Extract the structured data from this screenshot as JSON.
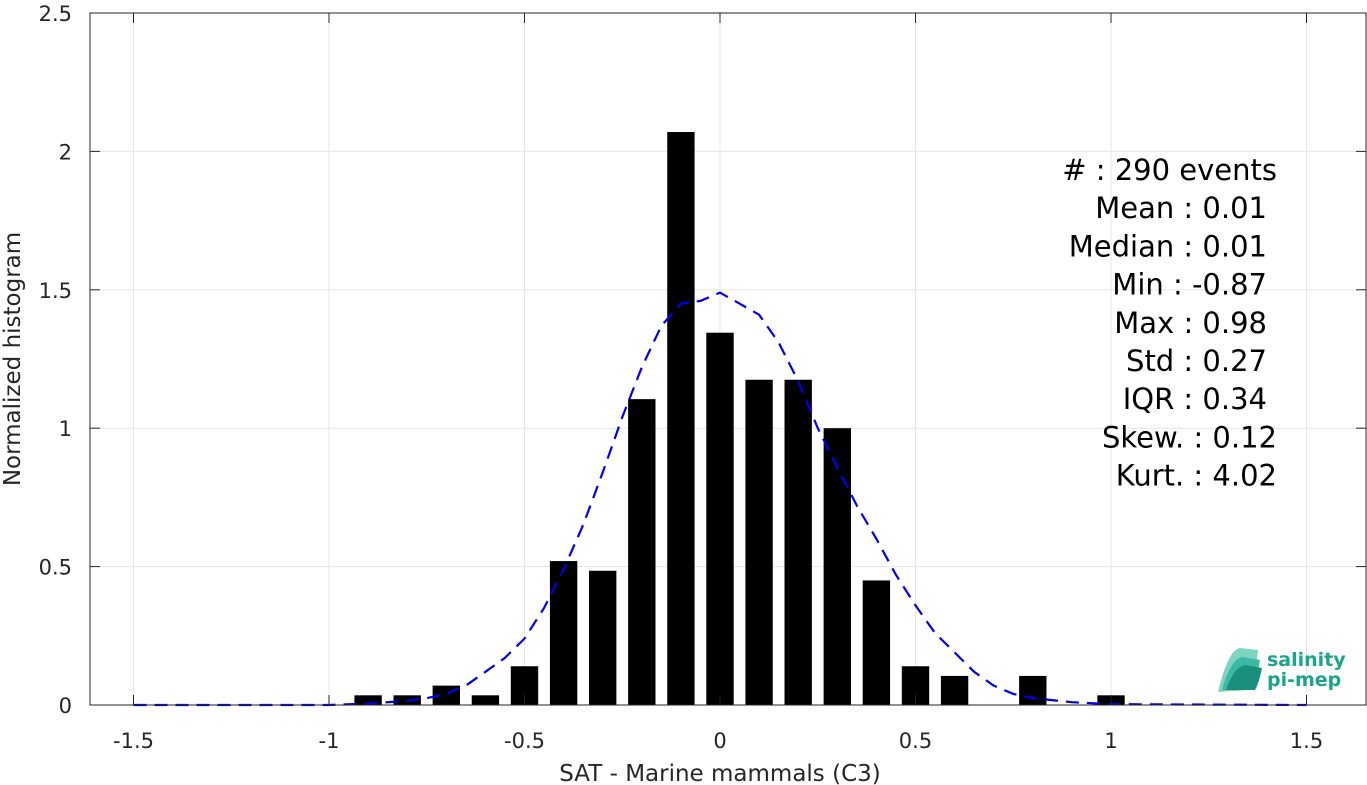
{
  "chart_data": {
    "type": "bar",
    "xlabel": "SAT - Marine mammals (C3)",
    "ylabel": "Normalized histogram",
    "xlim": [
      -1.5,
      1.5
    ],
    "ylim": [
      0,
      2.5
    ],
    "xticks": [
      "-1.5",
      "-1",
      "-0.5",
      "0",
      "0.5",
      "1",
      "1.5"
    ],
    "yticks": [
      "0",
      "0.5",
      "1",
      "1.5",
      "2",
      "2.5"
    ],
    "grid": true,
    "bar_color": "#000000",
    "bar_width": 0.07,
    "bars": {
      "x": [
        -0.9,
        -0.8,
        -0.7,
        -0.6,
        -0.5,
        -0.4,
        -0.3,
        -0.2,
        -0.1,
        0.0,
        0.1,
        0.2,
        0.3,
        0.4,
        0.5,
        0.6,
        0.8,
        1.0
      ],
      "values": [
        0.035,
        0.035,
        0.07,
        0.035,
        0.14,
        0.52,
        0.485,
        1.105,
        2.07,
        1.345,
        1.175,
        1.175,
        1.0,
        0.45,
        0.14,
        0.105,
        0.105,
        0.035
      ]
    },
    "fit_curve": {
      "style": "dashed",
      "color": "#0000ee",
      "x": [
        -1.5,
        -1.0,
        -0.9,
        -0.8,
        -0.75,
        -0.7,
        -0.65,
        -0.6,
        -0.55,
        -0.5,
        -0.45,
        -0.4,
        -0.35,
        -0.3,
        -0.25,
        -0.2,
        -0.15,
        -0.1,
        -0.05,
        0.0,
        0.05,
        0.1,
        0.15,
        0.2,
        0.25,
        0.3,
        0.35,
        0.4,
        0.45,
        0.5,
        0.55,
        0.6,
        0.65,
        0.7,
        0.75,
        0.8,
        0.9,
        1.0,
        1.5
      ],
      "y": [
        0.0,
        0.0,
        0.005,
        0.015,
        0.025,
        0.04,
        0.07,
        0.12,
        0.17,
        0.24,
        0.35,
        0.49,
        0.65,
        0.84,
        1.04,
        1.22,
        1.37,
        1.45,
        1.46,
        1.49,
        1.45,
        1.41,
        1.31,
        1.17,
        1.0,
        0.86,
        0.72,
        0.6,
        0.47,
        0.36,
        0.26,
        0.19,
        0.12,
        0.07,
        0.04,
        0.025,
        0.01,
        0.003,
        0.0
      ]
    },
    "stats": [
      "#  : 290 events",
      "Mean : 0.01",
      "Median : 0.01",
      "Min : -0.87",
      "Max : 0.98",
      "Std : 0.27",
      "IQR : 0.34",
      "Skew. : 0.12",
      "Kurt. : 4.02"
    ]
  },
  "logo": {
    "line1": "salinity",
    "line2": "pi-mep",
    "color": "#1aa58c"
  }
}
